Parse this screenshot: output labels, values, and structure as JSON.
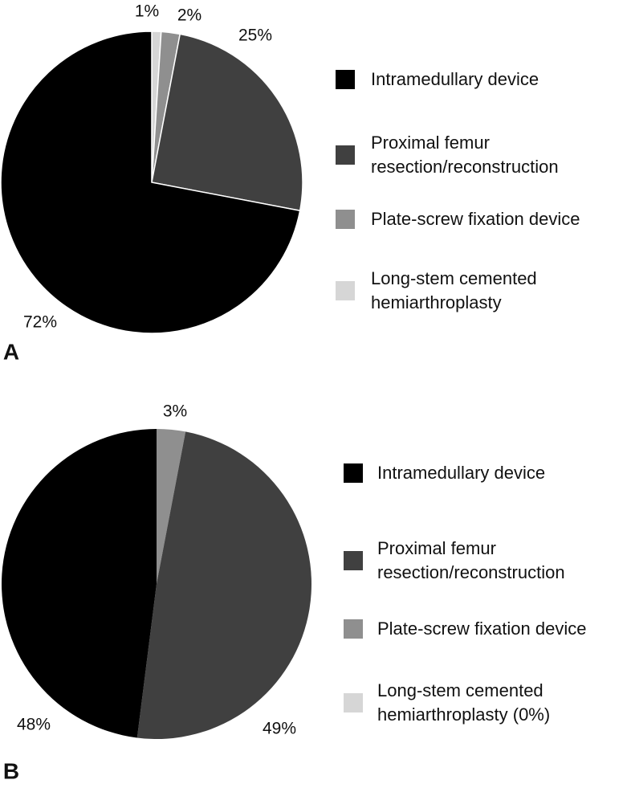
{
  "chart_data": [
    {
      "type": "pie",
      "label": "A",
      "categories": [
        "Intramedullary device",
        "Proximal femur\nresection/reconstruction",
        "Plate-screw fixation device",
        "Long-stem cemented\nhemiarthroplasty"
      ],
      "values": [
        72,
        25,
        2,
        1
      ],
      "value_labels": [
        "72%",
        "25%",
        "2%",
        "1%"
      ],
      "colors": [
        "#000000",
        "#404040",
        "#8f8f8f",
        "#d6d6d6"
      ]
    },
    {
      "type": "pie",
      "label": "B",
      "categories": [
        "Intramedullary device",
        "Proximal femur\nresection/reconstruction",
        "Plate-screw fixation device",
        "Long-stem cemented\nhemiarthroplasty (0%)"
      ],
      "values": [
        48,
        49,
        3,
        0
      ],
      "value_labels": [
        "48%",
        "49%",
        "3%",
        null
      ],
      "colors": [
        "#000000",
        "#404040",
        "#8f8f8f",
        "#d6d6d6"
      ]
    }
  ]
}
